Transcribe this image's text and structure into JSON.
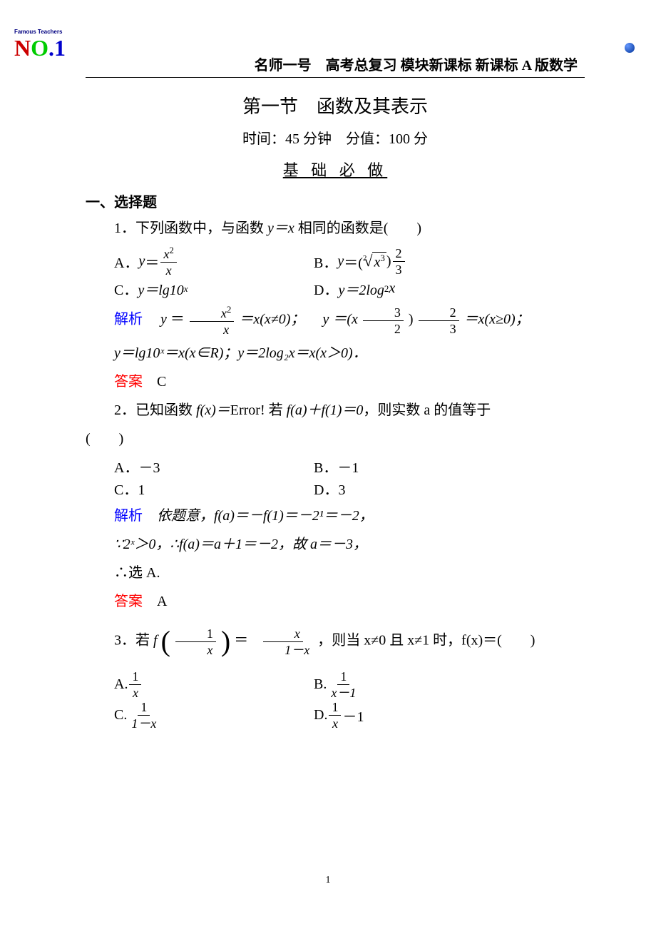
{
  "logo": {
    "top_text": "Famous Teachers",
    "letters": [
      "N",
      "O",
      ".",
      "1"
    ]
  },
  "header": "名师一号　高考总复习 模块新课标 新课标 A 版数学",
  "section_title": "第一节　函数及其表示",
  "time_score": "时间：45 分钟　分值：100 分",
  "subtitle": "基 础 必 做",
  "heading1": "一、选择题",
  "q1": {
    "stem_pre": "1．下列函数中，与函数 ",
    "stem_mid": "y＝x",
    "stem_post": " 相同的函数是(　　)",
    "optA_label": "A．",
    "optA_y": "y",
    "optA_eq": "＝",
    "optA_num": "x",
    "optA_num_sup": "2",
    "optA_den": "x",
    "optB_label": "B．",
    "optB_y": "y",
    "optB_eq": "＝(",
    "optB_sqrt_idx": "2",
    "optB_sqrt_body": "x",
    "optB_sqrt_sup": "3",
    "optB_close": ")",
    "optB_frac_num": "2",
    "optB_frac_den": "3",
    "optC_label": "C．",
    "optC_text": "y＝lg10",
    "optC_sup": "x",
    "optD_label": "D．",
    "optD_text": "y＝2log",
    "optD_sub": "2",
    "optD_tail": "x",
    "jiexi_label": "解析",
    "jiexi_p1a": "y",
    "jiexi_p1b": "＝",
    "jiexi_frac1_num": "x",
    "jiexi_frac1_num_sup": "2",
    "jiexi_frac1_den": "x",
    "jiexi_p1c": "＝x(x≠0)；",
    "jiexi_p1d": "y",
    "jiexi_p1e": "＝(x",
    "jiexi_frac2a_num": "3",
    "jiexi_frac2a_den": "2",
    "jiexi_p1f": ")",
    "jiexi_frac2b_num": "2",
    "jiexi_frac2b_den": "3",
    "jiexi_p1g": "＝x(x≥0)；",
    "jiexi_p2": "y＝lg10ˣ＝x(x∈R)；y＝2log₂x＝x(x＞0)．",
    "daan_label": "答案",
    "daan_value": "C"
  },
  "q2": {
    "stem_pre": "2．已知函数 ",
    "stem_fx": "f(x)＝",
    "stem_err": "Error!",
    "stem_post1": " 若 ",
    "stem_mid": "f(a)＋f(1)＝0",
    "stem_post2": "，则实数 a 的值等于",
    "paren": "(　　)",
    "optA": "A．－3",
    "optB": "B．－1",
    "optC": "C．1",
    "optD": "D．3",
    "jiexi_label": "解析",
    "jiexi_line1": "依题意，f(a)＝－f(1)＝－2¹＝－2，",
    "jiexi_line2": "∵2ˣ＞0，∴f(a)＝a＋1＝－2，故 a＝－3，",
    "jiexi_line3": "∴选 A.",
    "daan_label": "答案",
    "daan_value": "A"
  },
  "q3": {
    "stem_pre": "3．若 ",
    "stem_f": "f",
    "stem_frac_inner_num": "1",
    "stem_frac_inner_den": "x",
    "stem_eq": "＝",
    "stem_frac_outer_num": "x",
    "stem_frac_outer_den": "1－x",
    "stem_post": "，则当 x≠0 且 x≠1 时，f(x)＝(　　)",
    "optA_label": "A.",
    "optA_num": "1",
    "optA_den": "x",
    "optB_label": "B.",
    "optB_num": "1",
    "optB_den": "x－1",
    "optC_label": "C.",
    "optC_num": "1",
    "optC_den": "1－x",
    "optD_label": "D.",
    "optD_num": "1",
    "optD_den": "x",
    "optD_tail": "－1"
  },
  "page_number": "1"
}
